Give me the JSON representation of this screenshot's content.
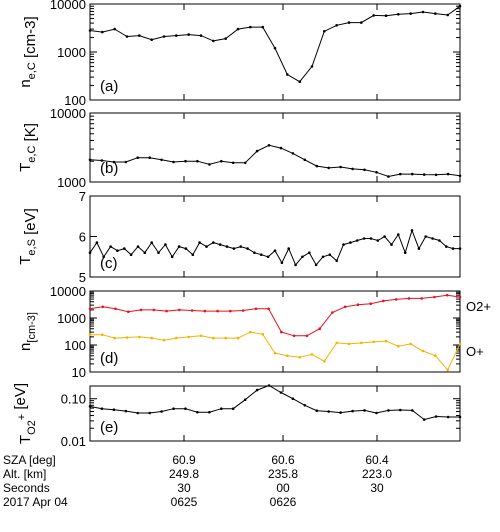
{
  "colors": {
    "frame": "#000000",
    "line": "#000000",
    "o2plus": "#e8101c",
    "oplus": "#f2b400"
  },
  "chart_data": [
    {
      "type": "line",
      "ylabel": "n e,C [cm-3]",
      "yscale": "log",
      "ylim": [
        100,
        10000
      ],
      "yticks": [
        "100",
        "1000",
        "10000"
      ],
      "panel_label": "(a)",
      "series": [
        {
          "values": [
            2800,
            2600,
            3000,
            2100,
            2200,
            1800,
            2100,
            2200,
            2300,
            2200,
            1700,
            1900,
            3000,
            3300,
            3300,
            1200,
            340,
            240,
            500,
            2700,
            3600,
            4100,
            4100,
            5800,
            5700,
            6100,
            6300,
            6800,
            6300,
            5900,
            9000
          ]
        }
      ]
    },
    {
      "type": "line",
      "ylabel": "T e,C [K]",
      "yscale": "log",
      "ylim": [
        1000,
        10000
      ],
      "yticks": [
        "1000",
        "10000"
      ],
      "panel_label": "(b)",
      "series": [
        {
          "values": [
            2100,
            2050,
            1950,
            1950,
            2250,
            2250,
            2100,
            1950,
            2000,
            2000,
            1800,
            2000,
            1900,
            1900,
            2800,
            3400,
            3100,
            2600,
            2100,
            1700,
            1600,
            1650,
            1550,
            1500,
            1380,
            1200,
            1300,
            1300,
            1280,
            1270,
            1300,
            1230
          ]
        }
      ]
    },
    {
      "type": "line",
      "ylabel": "T e,S [eV]",
      "yscale": "linear",
      "ylim": [
        5,
        7
      ],
      "yticks": [
        "5",
        "6",
        "7"
      ],
      "panel_label": "(c)",
      "series": [
        {
          "values": [
            5.6,
            5.85,
            5.5,
            5.75,
            5.65,
            5.7,
            5.55,
            5.75,
            5.6,
            5.85,
            5.6,
            5.8,
            5.5,
            5.75,
            5.7,
            5.55,
            5.85,
            5.75,
            5.85,
            5.8,
            5.75,
            5.7,
            5.75,
            5.7,
            5.6,
            5.55,
            5.5,
            5.65,
            5.35,
            5.7,
            5.3,
            5.5,
            5.6,
            5.3,
            5.5,
            5.55,
            5.4,
            5.8,
            5.85,
            5.9,
            5.95,
            5.95,
            5.9,
            6.0,
            5.8,
            6.05,
            5.6,
            6.15,
            5.7,
            6.0,
            5.95,
            5.9,
            5.75,
            5.7,
            5.7
          ]
        }
      ]
    },
    {
      "type": "line",
      "ylabel": "n [cm-3]",
      "yscale": "log",
      "ylim": [
        10,
        10000
      ],
      "yticks": [
        "10",
        "100",
        "1000",
        "10000"
      ],
      "panel_label": "(d)",
      "series": [
        {
          "name": "O2+",
          "values": [
            2200,
            2600,
            2200,
            1700,
            2000,
            2000,
            1800,
            2000,
            1900,
            1800,
            1800,
            1800,
            1900,
            2200,
            2200,
            300,
            220,
            220,
            400,
            1600,
            2600,
            3100,
            3400,
            4300,
            4900,
            5300,
            5300,
            6000,
            7000,
            6000
          ]
        },
        {
          "name": "O+",
          "values": [
            240,
            240,
            180,
            190,
            200,
            180,
            150,
            180,
            200,
            220,
            180,
            180,
            180,
            300,
            250,
            50,
            40,
            35,
            45,
            25,
            120,
            110,
            120,
            130,
            140,
            90,
            110,
            60,
            40,
            12,
            110
          ]
        }
      ]
    },
    {
      "type": "line",
      "ylabel": "T O2 + [eV]",
      "yscale": "log",
      "ylim": [
        0.01,
        0.2
      ],
      "yticks": [
        "0.01",
        "0.10"
      ],
      "panel_label": "(e)",
      "series": [
        {
          "values": [
            0.066,
            0.058,
            0.055,
            0.051,
            0.046,
            0.046,
            0.05,
            0.058,
            0.058,
            0.048,
            0.048,
            0.058,
            0.058,
            0.095,
            0.16,
            0.205,
            0.14,
            0.1,
            0.07,
            0.052,
            0.05,
            0.047,
            0.051,
            0.053,
            0.046,
            0.053,
            0.054,
            0.053,
            0.032,
            0.038,
            0.037,
            0.037
          ]
        }
      ]
    }
  ],
  "xaxis": {
    "row_labels": [
      "SZA [deg]",
      "Alt. [km]",
      "Seconds",
      "2017 Apr 04"
    ],
    "columns": [
      {
        "sza": "60.9",
        "alt": "249.8",
        "sec": "30",
        "time": "0625"
      },
      {
        "sza": "60.6",
        "alt": "235.8",
        "sec": "00",
        "time": "0626"
      },
      {
        "sza": "60.4",
        "alt": "223.0",
        "sec": "30",
        "time": ""
      }
    ]
  },
  "legend": {
    "o2plus": "O2+",
    "oplus": "O+"
  }
}
